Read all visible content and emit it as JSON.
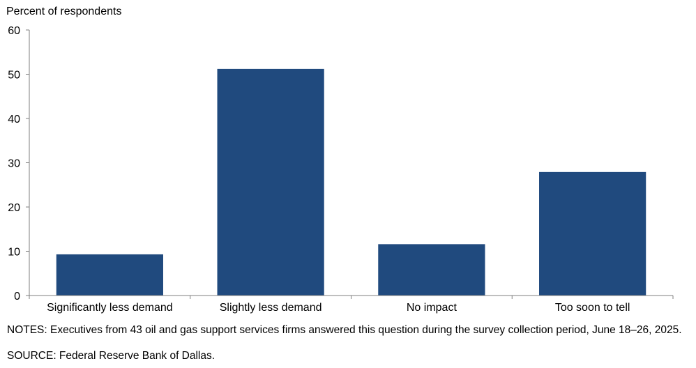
{
  "chart_data": {
    "type": "bar",
    "title": "",
    "ylabel": "Percent of respondents",
    "xlabel": "",
    "categories": [
      "Significantly less demand",
      "Slightly less demand",
      "No impact",
      "Too soon to tell"
    ],
    "values": [
      9.3,
      51.2,
      11.6,
      27.9
    ],
    "ylim": [
      0,
      60
    ],
    "yticks": [
      0,
      10,
      20,
      30,
      40,
      50,
      60
    ],
    "bar_color": "#204a7e",
    "grid": false,
    "legend": "none"
  },
  "notes": {
    "notes_text": "NOTES: Executives from 43 oil and gas support services firms answered this question during the survey collection period, June 18–26, 2025.",
    "source_text": "SOURCE: Federal Reserve Bank of Dallas."
  }
}
